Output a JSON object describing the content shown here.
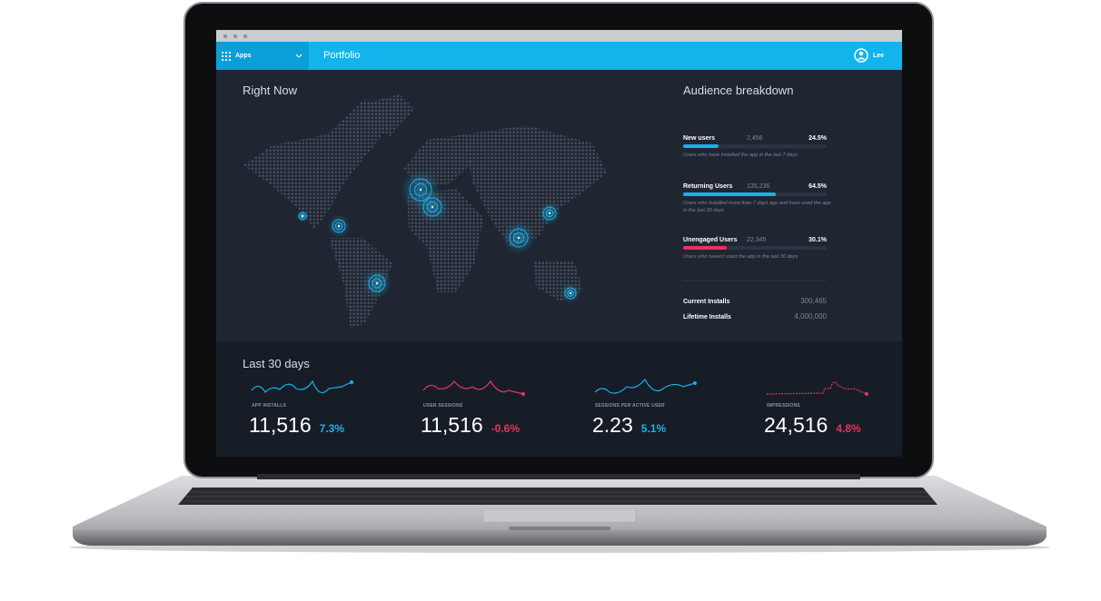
{
  "nav": {
    "apps": "Apps",
    "title": "Portfolio",
    "user": "Lee"
  },
  "map_panel": {
    "title": "Right Now"
  },
  "audience": {
    "title": "Audience breakdown",
    "segments": [
      {
        "name": "New users",
        "count": "2,456",
        "share": {
          "value": 24.5,
          "label": "24.5%"
        },
        "color": "#1ab0ea",
        "description": "Users who have installed the app in the last 7 days"
      },
      {
        "name": "Returning Users",
        "count": "135,236",
        "share": {
          "value": 64.5,
          "label": "64.5%"
        },
        "color": "#1ab0ea",
        "description": "Users who installed more than 7 days ago and have used the app in the last 30 days"
      },
      {
        "name": "Unengaged Users",
        "count": "22,345",
        "share": {
          "value": 30.1,
          "label": "30.1%"
        },
        "color": "#e8335e",
        "description": "Users who haven't used the app in the last 30 days"
      }
    ],
    "totals": [
      {
        "name": "Current Installs",
        "value": "300,465"
      },
      {
        "name": "Lifetime Installs",
        "value": "4,000,000"
      }
    ]
  },
  "period": {
    "title": "Last 30 days",
    "metrics": [
      {
        "name": "APP INSTALLS",
        "value": "11,516",
        "change": "7.3%",
        "color": "#1ab0ea"
      },
      {
        "name": "USER SESSIONS",
        "value": "11,516",
        "change": "-0.6%",
        "color": "#e8335e"
      },
      {
        "name": "SESSIONS PER ACTIVE USER",
        "value": "2.23",
        "change": "5.1%",
        "color": "#1ab0ea"
      },
      {
        "name": "IMPRESSIONS",
        "value": "24,516",
        "change": "4.8%",
        "color": "#e8335e"
      }
    ]
  }
}
